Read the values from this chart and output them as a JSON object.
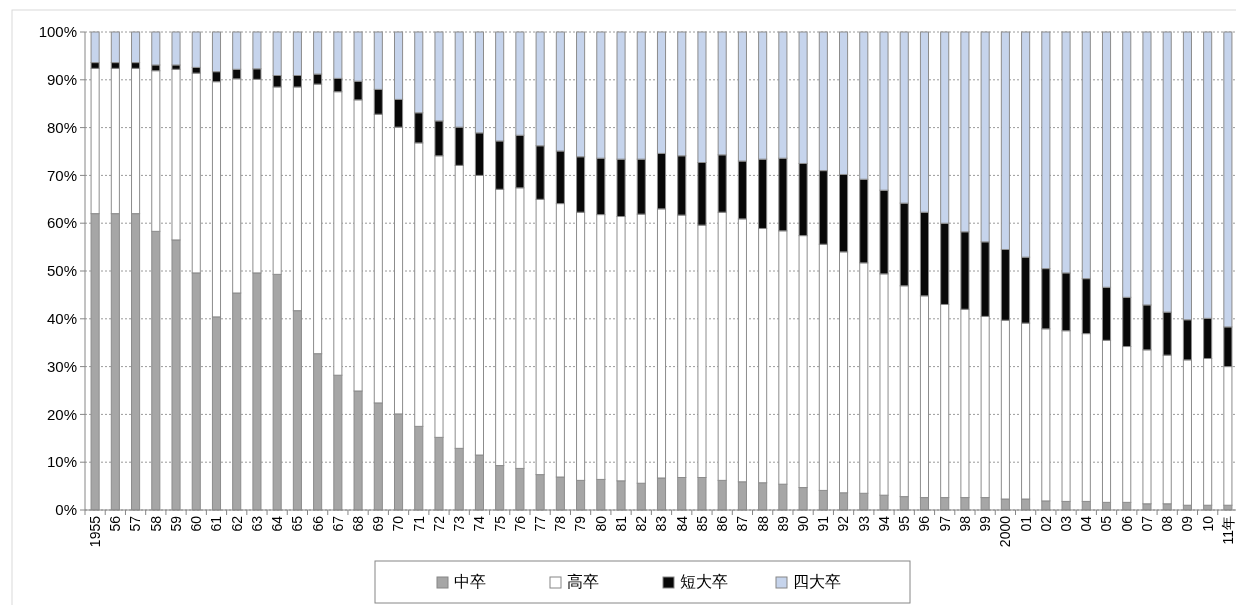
{
  "chart_data": {
    "type": "bar",
    "stacked": true,
    "categories": [
      "1955",
      "56",
      "57",
      "58",
      "59",
      "60",
      "61",
      "62",
      "63",
      "64",
      "65",
      "66",
      "67",
      "68",
      "69",
      "70",
      "71",
      "72",
      "73",
      "74",
      "75",
      "76",
      "77",
      "78",
      "79",
      "80",
      "81",
      "82",
      "83",
      "84",
      "85",
      "86",
      "87",
      "88",
      "89",
      "90",
      "91",
      "92",
      "93",
      "94",
      "95",
      "96",
      "97",
      "98",
      "99",
      "2000",
      "01",
      "02",
      "03",
      "04",
      "05",
      "06",
      "07",
      "08",
      "09",
      "10",
      "11年"
    ],
    "series": [
      {
        "name": "中卒",
        "color": "#a6a6a6",
        "values": [
          62.0,
          62.0,
          62.0,
          58.3,
          56.5,
          49.6,
          40.4,
          45.4,
          49.6,
          49.3,
          41.7,
          32.7,
          28.2,
          24.9,
          22.4,
          20.1,
          17.5,
          15.2,
          12.9,
          11.5,
          9.3,
          8.7,
          7.4,
          6.9,
          6.2,
          6.4,
          6.1,
          5.6,
          6.7,
          6.8,
          6.8,
          6.2,
          5.9,
          5.7,
          5.4,
          4.7,
          4.1,
          3.6,
          3.5,
          3.1,
          2.8,
          2.6,
          2.6,
          2.6,
          2.6,
          2.3,
          2.3,
          1.9,
          1.8,
          1.8,
          1.6,
          1.6,
          1.3,
          1.3,
          1.0,
          1.0,
          1.0
        ]
      },
      {
        "name": "高卒",
        "color": "#ffffff",
        "values": [
          30.4,
          30.4,
          30.4,
          33.6,
          35.7,
          41.8,
          49.2,
          44.8,
          40.5,
          39.2,
          46.8,
          56.4,
          59.3,
          60.9,
          60.4,
          60.0,
          59.3,
          58.9,
          59.2,
          58.5,
          57.8,
          58.7,
          57.6,
          57.2,
          56.1,
          55.4,
          55.3,
          56.3,
          56.3,
          54.9,
          52.8,
          56.1,
          55.0,
          53.2,
          53.0,
          52.7,
          51.5,
          50.4,
          48.2,
          46.3,
          44.1,
          42.2,
          40.4,
          39.4,
          37.9,
          37.4,
          36.8,
          36.0,
          35.7,
          35.1,
          33.9,
          32.6,
          32.2,
          31.1,
          30.4,
          30.7,
          29.0
        ]
      },
      {
        "name": "短大卒",
        "color": "#080808",
        "values": [
          1.2,
          1.2,
          1.2,
          1.2,
          0.9,
          1.2,
          2.1,
          2.0,
          2.2,
          2.4,
          2.4,
          2.1,
          2.8,
          3.9,
          5.2,
          5.8,
          6.3,
          7.3,
          8.0,
          8.9,
          10.1,
          11.0,
          11.2,
          11.0,
          11.6,
          11.8,
          12.0,
          11.5,
          11.6,
          12.4,
          13.1,
          12.0,
          12.1,
          14.5,
          15.2,
          15.1,
          15.4,
          16.2,
          17.5,
          17.5,
          17.3,
          17.5,
          17.0,
          16.2,
          15.6,
          14.8,
          13.8,
          12.6,
          12.1,
          11.5,
          11.1,
          10.3,
          9.4,
          9.0,
          8.4,
          8.4,
          8.3
        ]
      },
      {
        "name": "四大卒",
        "color": "#c6d4ec",
        "values": [
          6.4,
          6.4,
          6.4,
          6.9,
          6.9,
          7.4,
          8.3,
          7.8,
          7.7,
          9.1,
          9.1,
          8.8,
          9.7,
          10.3,
          12.0,
          14.1,
          16.9,
          18.6,
          19.9,
          21.1,
          22.8,
          21.6,
          23.8,
          24.9,
          26.1,
          26.4,
          26.6,
          26.6,
          25.4,
          25.9,
          27.3,
          25.7,
          27.0,
          26.6,
          26.4,
          27.5,
          29.0,
          29.8,
          30.8,
          33.1,
          35.8,
          37.7,
          40.0,
          41.8,
          43.9,
          45.5,
          47.1,
          49.5,
          50.4,
          51.6,
          53.4,
          55.5,
          57.1,
          58.6,
          60.2,
          59.9,
          61.7
        ]
      }
    ],
    "ylim": [
      0,
      100
    ],
    "yticks": [
      {
        "value": 0,
        "label": "0%"
      },
      {
        "value": 10,
        "label": "10%"
      },
      {
        "value": 20,
        "label": "20%"
      },
      {
        "value": 30,
        "label": "30%"
      },
      {
        "value": 40,
        "label": "40%"
      },
      {
        "value": 50,
        "label": "50%"
      },
      {
        "value": 60,
        "label": "60%"
      },
      {
        "value": 70,
        "label": "70%"
      },
      {
        "value": 80,
        "label": "80%"
      },
      {
        "value": 90,
        "label": "90%"
      },
      {
        "value": 100,
        "label": "100%"
      }
    ],
    "grid": "y",
    "legend": "bottom"
  }
}
